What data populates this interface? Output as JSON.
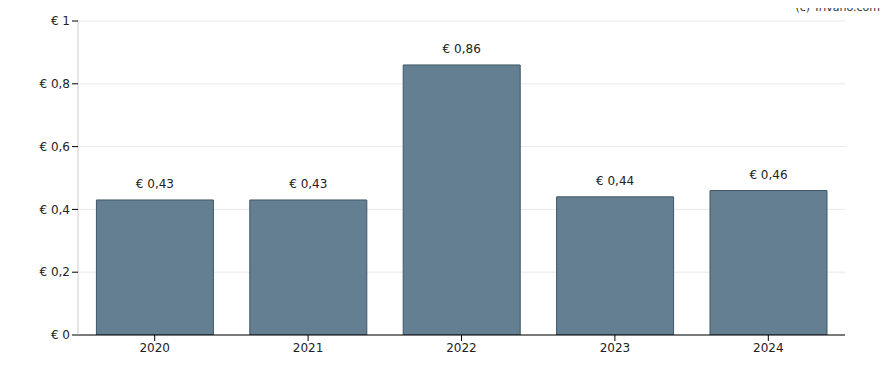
{
  "chart_data": {
    "type": "bar",
    "categories": [
      "2020",
      "2021",
      "2022",
      "2023",
      "2024"
    ],
    "values": [
      0.43,
      0.43,
      0.86,
      0.44,
      0.46
    ],
    "value_labels": [
      "€ 0,43",
      "€ 0,43",
      "€ 0,86",
      "€ 0,44",
      "€ 0,46"
    ],
    "color": "#647f91",
    "ylim": [
      0,
      1
    ],
    "yticks": [
      {
        "value": 0,
        "label": "€ 0"
      },
      {
        "value": 0.2,
        "label": "€ 0,2"
      },
      {
        "value": 0.4,
        "label": "€ 0,4"
      },
      {
        "value": 0.6,
        "label": "€ 0,6"
      },
      {
        "value": 0.8,
        "label": "€ 0,8"
      },
      {
        "value": 1,
        "label": "€ 1"
      }
    ],
    "grid": true,
    "data_labels": true,
    "annotations": [
      "(c) Trivano.com"
    ]
  }
}
